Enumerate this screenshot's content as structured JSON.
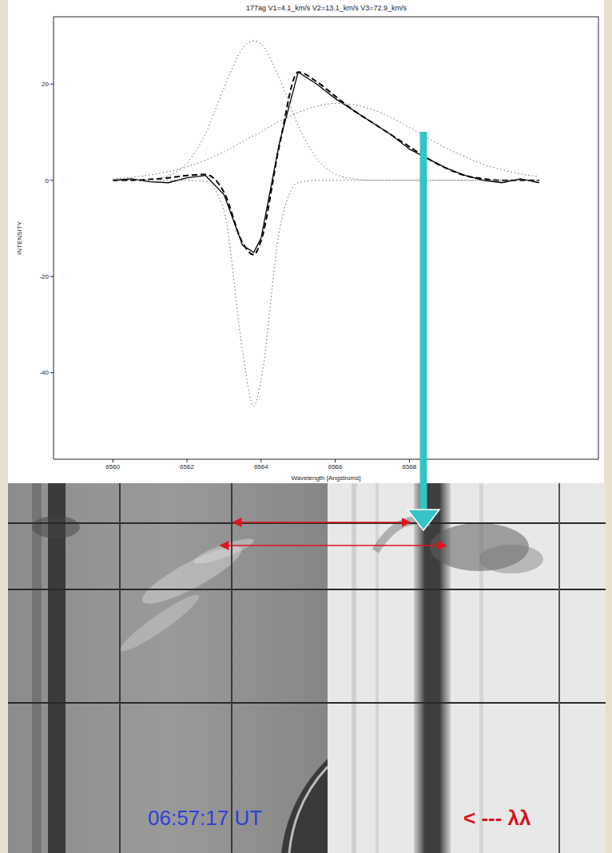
{
  "chart_data": {
    "type": "line",
    "title": "177ag V1=4.1_km/s V2=13.1_km/s V3=72.9_km/s",
    "x_label": "Wavelength [Angstroms]",
    "y_label": "INTENSITY",
    "x": [
      6560,
      6560.5,
      6561,
      6561.5,
      6562,
      6562.5,
      6563,
      6563.5,
      6563.8,
      6564,
      6564.5,
      6565,
      6565.5,
      6566,
      6566.5,
      6567,
      6567.5,
      6568,
      6568.5,
      6569,
      6569.5,
      6570,
      6570.5,
      6571,
      6571.5
    ],
    "series": [
      {
        "color": "#000000",
        "line_style": "solid",
        "values": [
          0,
          0.3,
          -0.3,
          -0.5,
          0.5,
          1,
          -3,
          -13.5,
          -15,
          -12,
          8,
          22.5,
          20,
          17,
          14.5,
          12,
          9.5,
          6.5,
          4.5,
          2.5,
          1,
          0,
          -0.5,
          0.3,
          -0.5
        ]
      },
      {
        "color": "#000000",
        "line_style": "dashed",
        "values": [
          0,
          0,
          0.2,
          0.5,
          1,
          1.2,
          -2.5,
          -13,
          -15.5,
          -12.5,
          7.5,
          22.5,
          20.5,
          17.5,
          14.5,
          12,
          9.5,
          7,
          4.5,
          2.5,
          1,
          0.3,
          0,
          0,
          0
        ]
      },
      {
        "color": "#666666",
        "line_style": "dotted",
        "values": [
          0,
          0,
          0.2,
          0.95,
          3.6,
          9.7,
          19.2,
          27.4,
          29,
          28.3,
          21.1,
          11.4,
          4.5,
          1.3,
          0.3,
          0,
          0,
          0,
          0,
          0,
          0,
          0,
          0,
          0,
          0
        ]
      },
      {
        "color": "#666666",
        "line_style": "dotted",
        "values": [
          0,
          0,
          0,
          0,
          0,
          -0.2,
          -6.4,
          -35.5,
          -47,
          -41.5,
          -10.2,
          -0.5,
          0,
          0,
          0,
          0,
          0,
          0,
          0,
          0,
          0,
          0,
          0,
          0,
          0
        ]
      },
      {
        "color": "#666666",
        "line_style": "dotted",
        "values": [
          0.3,
          0.6,
          1.1,
          1.8,
          2.8,
          4.2,
          5.9,
          8.0,
          9.3,
          10.1,
          12.3,
          14.1,
          15.4,
          16.0,
          15.7,
          14.7,
          13.1,
          11.0,
          8.8,
          6.7,
          4.9,
          3.3,
          2.2,
          1.3,
          0.8
        ]
      }
    ],
    "xlim": [
      6558.4,
      6573.1
    ],
    "xticks": [
      6560,
      6562,
      6564,
      6566,
      6568
    ],
    "ylim": [
      -58,
      34
    ],
    "yticks": [
      -40,
      -20,
      0,
      20
    ],
    "grid": false
  },
  "image": {
    "timestamp": "06:57:17 UT",
    "wavelength_label": "< --- λλ"
  }
}
